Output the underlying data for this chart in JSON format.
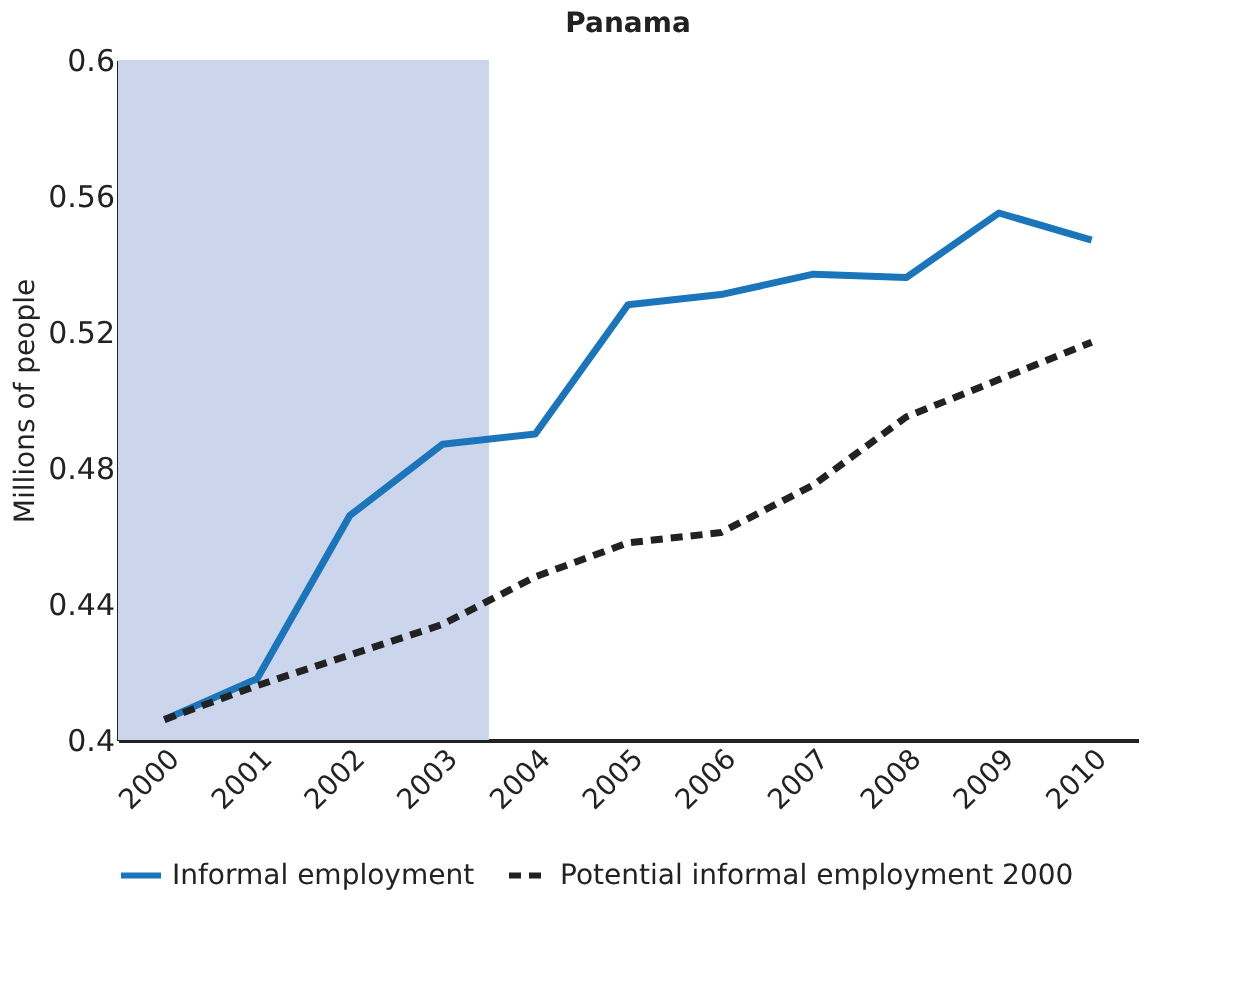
{
  "chart_data": {
    "type": "line",
    "title": "Panama",
    "ylabel": "Millions of people",
    "x": [
      2000,
      2001,
      2002,
      2003,
      2004,
      2005,
      2006,
      2007,
      2008,
      2009,
      2010
    ],
    "series": [
      {
        "name": "Informal employment",
        "color": "#1a75bb",
        "line_style": "solid",
        "values": [
          0.406,
          0.418,
          0.466,
          0.487,
          0.49,
          0.528,
          0.531,
          0.537,
          0.536,
          0.555,
          0.547
        ]
      },
      {
        "name": "Potential informal employment 2000",
        "color": "#222222",
        "line_style": "dashed",
        "values": [
          0.406,
          0.416,
          0.425,
          0.434,
          0.448,
          0.458,
          0.461,
          0.475,
          0.495,
          0.506,
          0.517
        ]
      }
    ],
    "xlim": [
      1999.5,
      2010.5
    ],
    "xticks": [
      2000,
      2001,
      2002,
      2003,
      2004,
      2005,
      2006,
      2007,
      2008,
      2009,
      2010
    ],
    "ylim": [
      0.4,
      0.6
    ],
    "yticks": [
      0.4,
      0.44,
      0.48,
      0.52,
      0.56,
      0.6
    ],
    "bands": [
      {
        "axis": "x",
        "from": 1999.5,
        "to": 2003.5,
        "color": "#cbd5eb"
      }
    ],
    "grid": false,
    "legend": "bottom",
    "marker": "none"
  }
}
